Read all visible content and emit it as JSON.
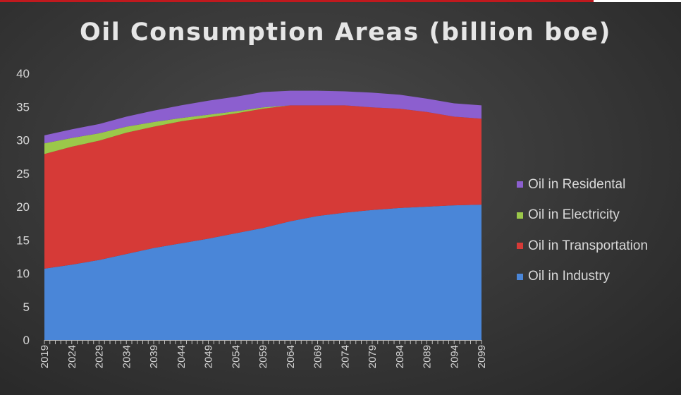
{
  "chart_data": {
    "type": "area",
    "stacked": true,
    "title": "Oil Consumption Areas (billion boe)",
    "xlabel": "",
    "ylabel": "",
    "ylim": [
      0,
      40
    ],
    "yticks": [
      0,
      5,
      10,
      15,
      20,
      25,
      30,
      35,
      40
    ],
    "xticks": [
      "2019",
      "2024",
      "2029",
      "2034",
      "2039",
      "2044",
      "2049",
      "2054",
      "2059",
      "2064",
      "2069",
      "2074",
      "2079",
      "2084",
      "2089",
      "2094",
      "2099"
    ],
    "grid": false,
    "legend_position": "right",
    "x": [
      2019,
      2024,
      2029,
      2034,
      2039,
      2044,
      2049,
      2054,
      2059,
      2064,
      2069,
      2074,
      2079,
      2084,
      2089,
      2094,
      2099
    ],
    "series": [
      {
        "name": "Oil in Industry",
        "color": "#4a86d8",
        "values": [
          10.7,
          11.3,
          12.0,
          12.9,
          13.8,
          14.5,
          15.2,
          16.0,
          16.8,
          17.8,
          18.6,
          19.1,
          19.5,
          19.8,
          20.0,
          20.2,
          20.3
        ]
      },
      {
        "name": "Oil in Transportation",
        "color": "#d63a37",
        "values": [
          17.2,
          17.7,
          17.9,
          18.2,
          18.2,
          18.3,
          18.2,
          18.0,
          17.9,
          17.4,
          16.6,
          16.1,
          15.4,
          14.9,
          14.2,
          13.3,
          12.9
        ]
      },
      {
        "name": "Oil in Electricity",
        "color": "#9bc84a",
        "values": [
          1.6,
          1.3,
          1.1,
          0.9,
          0.7,
          0.5,
          0.4,
          0.3,
          0.2,
          0.0,
          0.0,
          0.0,
          0.0,
          0.0,
          0.0,
          0.0,
          0.0
        ]
      },
      {
        "name": "Oil in Residental",
        "color": "#8c5fcf",
        "values": [
          1.2,
          1.3,
          1.4,
          1.5,
          1.7,
          1.9,
          2.1,
          2.2,
          2.3,
          2.2,
          2.2,
          2.1,
          2.2,
          2.1,
          2.0,
          2.0,
          2.0
        ]
      }
    ]
  }
}
